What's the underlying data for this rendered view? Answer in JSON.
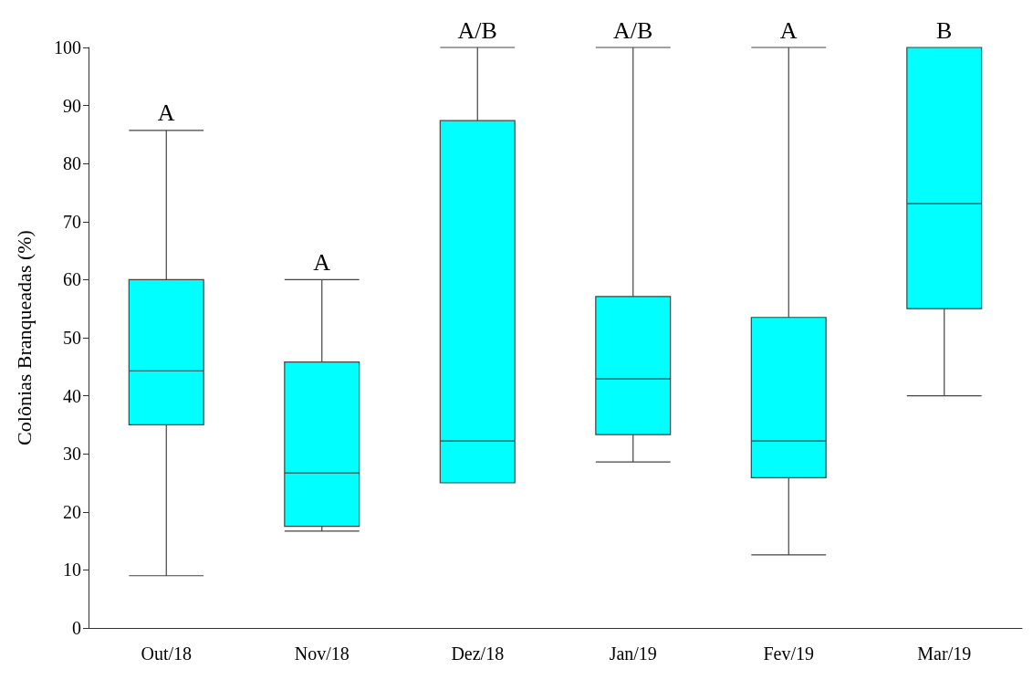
{
  "chart_data": {
    "type": "box",
    "ylabel": "Colônias Branqueadas (%)",
    "categories": [
      "Out/18",
      "Nov/18",
      "Dez/18",
      "Jan/19",
      "Fev/19",
      "Mar/19"
    ],
    "boxes": [
      {
        "low": 9,
        "q1": 35,
        "median": 44.3,
        "q3": 60,
        "high": 85.7
      },
      {
        "low": 16.7,
        "q1": 17.5,
        "median": 26.7,
        "q3": 45.8,
        "high": 60
      },
      {
        "low": 25,
        "q1": 25,
        "median": 32.2,
        "q3": 87.4,
        "high": 100
      },
      {
        "low": 28.6,
        "q1": 33.3,
        "median": 42.9,
        "q3": 57.1,
        "high": 100
      },
      {
        "low": 12.6,
        "q1": 25.9,
        "median": 32.2,
        "q3": 53.5,
        "high": 100
      },
      {
        "low": 40,
        "q1": 55,
        "median": 73.1,
        "q3": 100,
        "high": 100
      }
    ],
    "color": "#00ffff",
    "ylim": [
      0,
      100
    ],
    "yticks": [
      0,
      10,
      20,
      30,
      40,
      50,
      60,
      70,
      80,
      90,
      100
    ],
    "grid": false,
    "annotations": [
      "A",
      "A",
      "A/B",
      "A/B",
      "A",
      "B"
    ]
  }
}
